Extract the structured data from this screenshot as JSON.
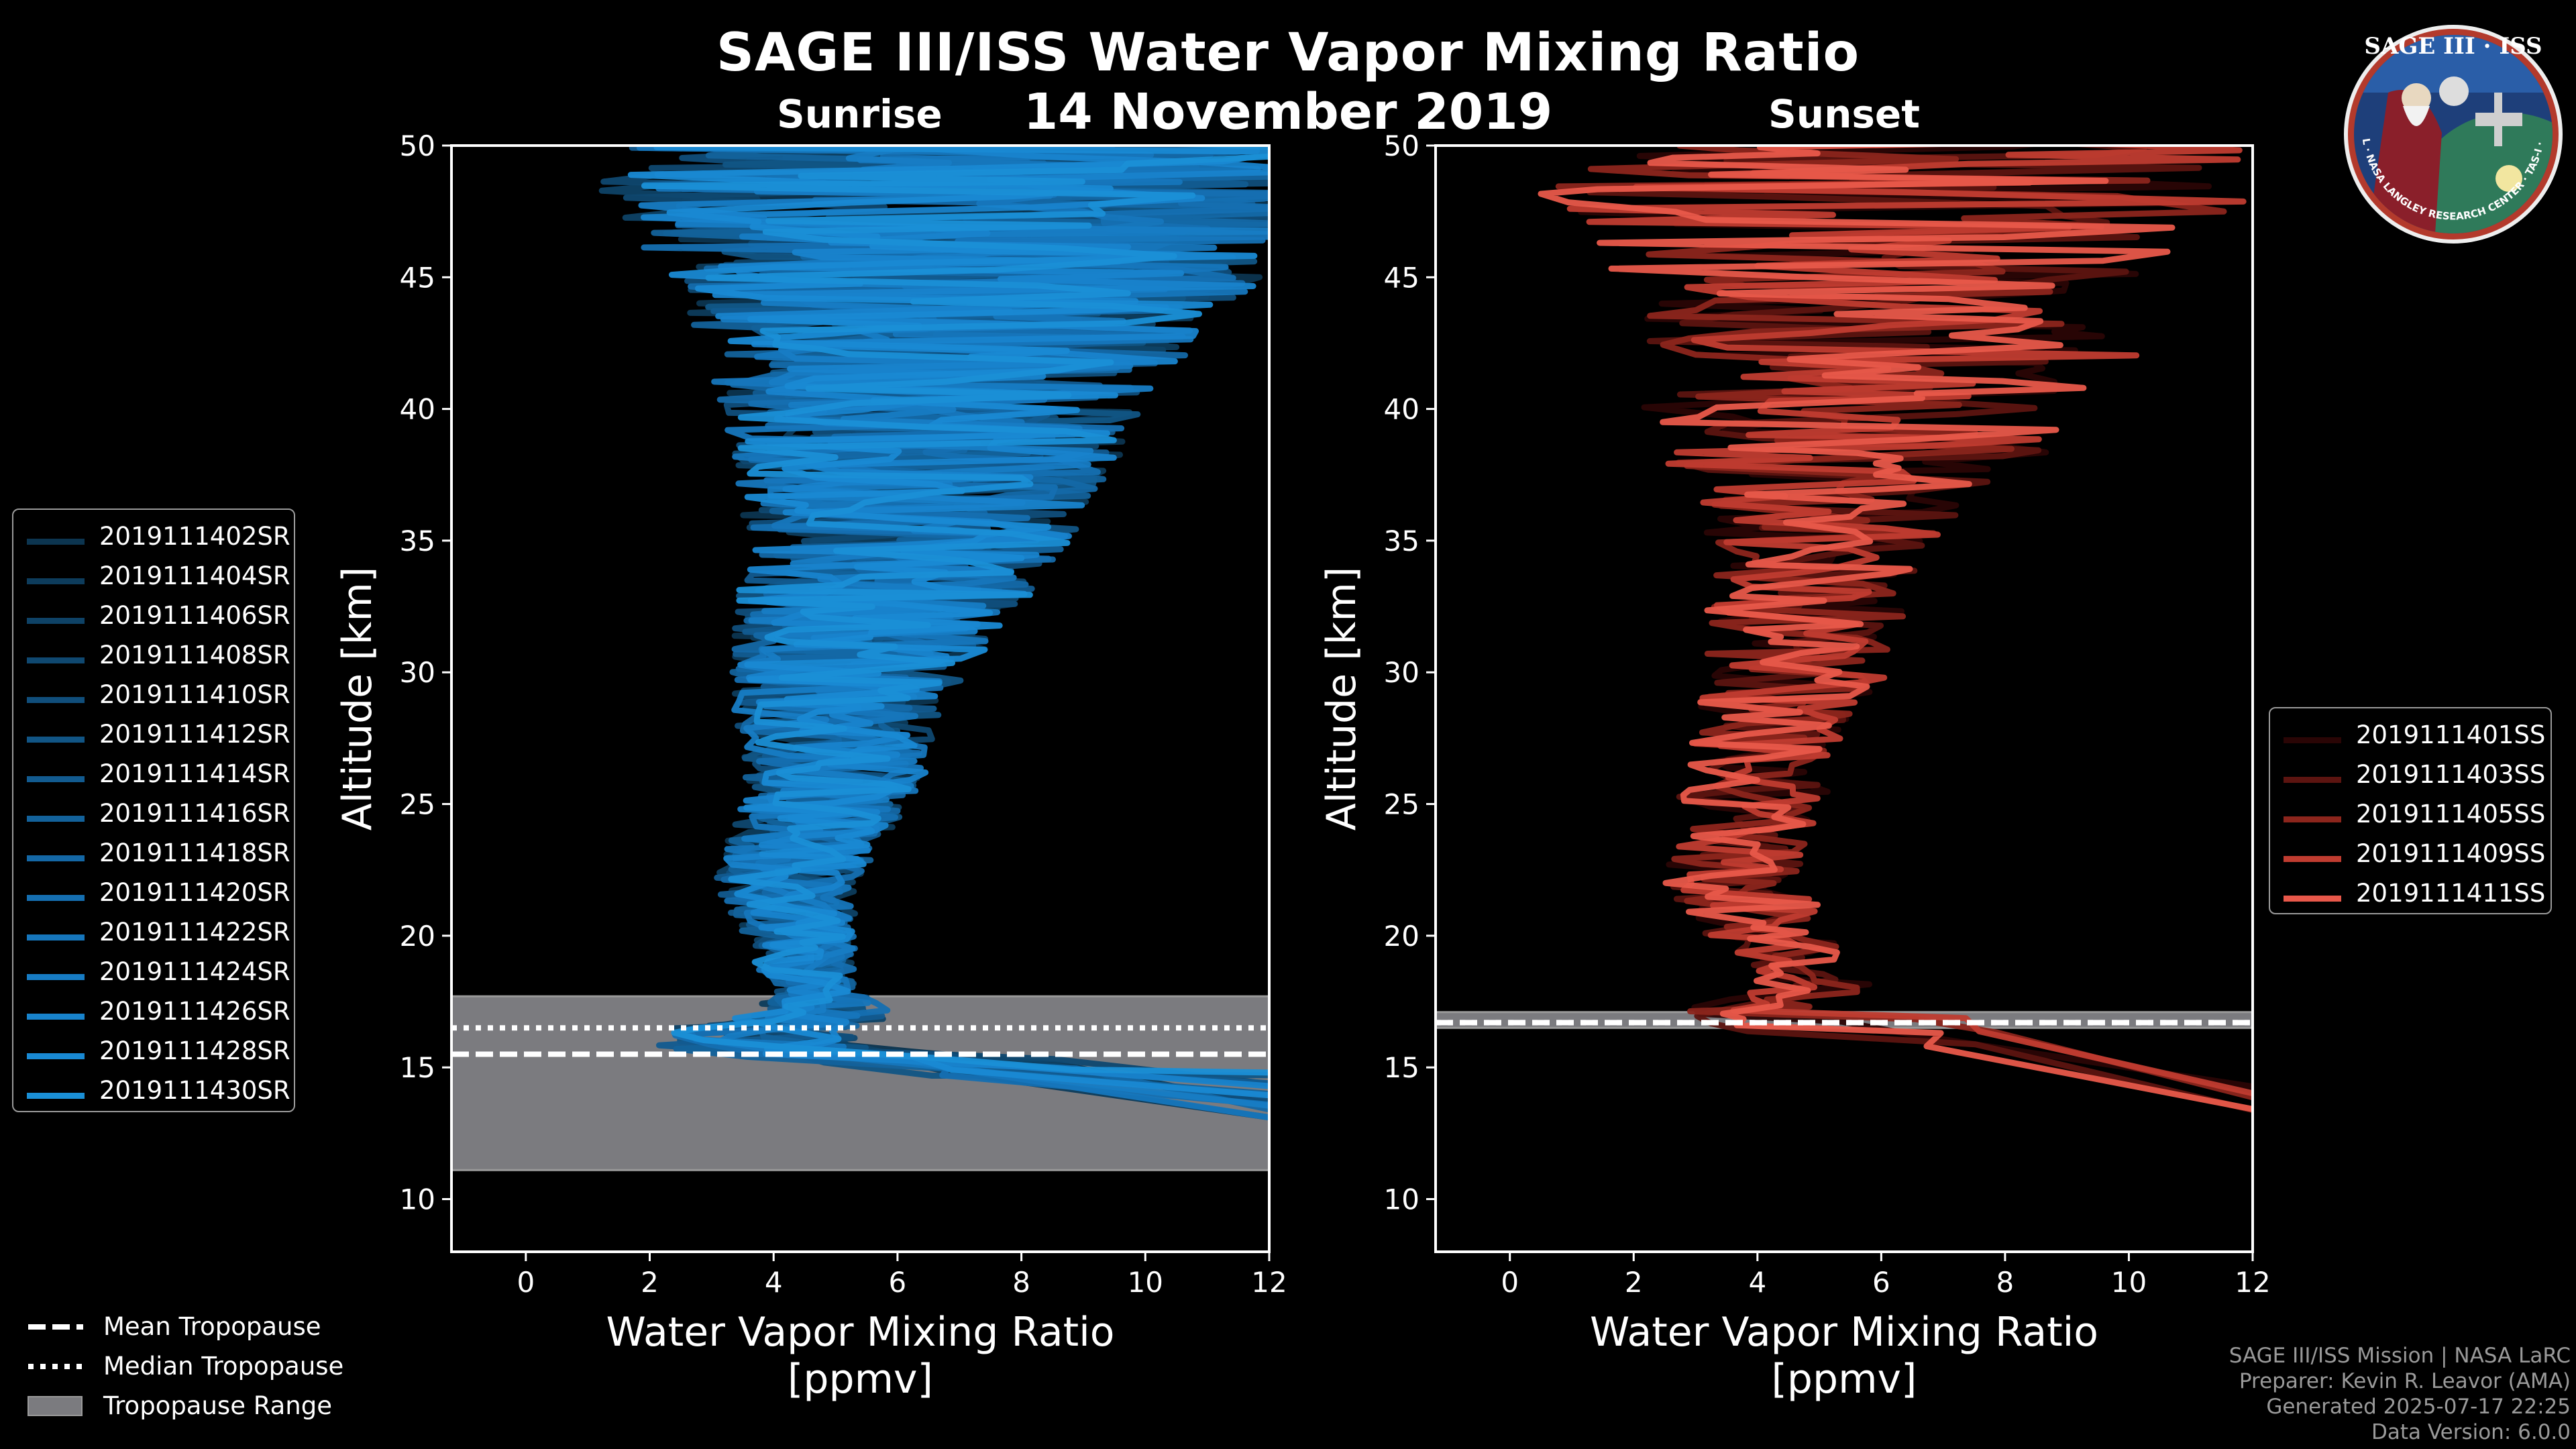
{
  "title": "SAGE III/ISS Water Vapor Mixing Ratio",
  "date": "14 November 2019",
  "colors": {
    "sunrise": "#1a8fd6",
    "sunset": "#e8584a",
    "tropopause_range": "#7b7b7f"
  },
  "logo": {
    "text": "SAGE III · ISS",
    "ring_text": "BALL · NASA LANGLEY RESEARCH CENTER · TAS-I · ESA"
  },
  "chart_data": [
    {
      "type": "line",
      "title": "Sunrise",
      "xlabel": "Water Vapor Mixing Ratio\n[ppmv]",
      "ylabel": "Altitude [km]",
      "xlim": [
        -1.2,
        12
      ],
      "ylim": [
        8,
        50
      ],
      "xticks": [
        0,
        2,
        4,
        6,
        8,
        10,
        12
      ],
      "yticks": [
        10,
        15,
        20,
        25,
        30,
        35,
        40,
        45,
        50
      ],
      "tropopause": {
        "mean": 15.5,
        "median": 16.5,
        "range": [
          11.1,
          17.7
        ]
      },
      "series": [
        "2019111402SR",
        "2019111404SR",
        "2019111406SR",
        "2019111408SR",
        "2019111410SR",
        "2019111412SR",
        "2019111414SR",
        "2019111416SR",
        "2019111418SR",
        "2019111420SR",
        "2019111422SR",
        "2019111424SR",
        "2019111426SR",
        "2019111428SR",
        "2019111430SR"
      ],
      "series_colors": [
        "#0c3550",
        "#0d3c5c",
        "#0e4266",
        "#0f4870",
        "#104e7b",
        "#115585",
        "#125b90",
        "#13629b",
        "#1468a6",
        "#156fb1",
        "#1676bc",
        "#177cc4",
        "#1883cc",
        "#1989d3",
        "#1a8fd6"
      ],
      "profile_mean": [
        [
          16.5,
          3.8
        ],
        [
          17,
          4.8
        ],
        [
          18,
          4.6
        ],
        [
          20,
          4.4
        ],
        [
          22,
          4.2
        ],
        [
          24,
          4.6
        ],
        [
          26,
          5.0
        ],
        [
          28,
          5.0
        ],
        [
          30,
          5.2
        ],
        [
          32,
          5.6
        ],
        [
          34,
          6.0
        ],
        [
          36,
          6.3
        ],
        [
          38,
          6.5
        ],
        [
          40,
          6.6
        ],
        [
          42,
          6.8
        ],
        [
          44,
          7.0
        ],
        [
          46,
          7.2
        ],
        [
          48,
          7.2
        ],
        [
          50,
          7.2
        ]
      ],
      "profile_spread": [
        [
          16,
          1.5
        ],
        [
          18,
          0.6
        ],
        [
          20,
          0.8
        ],
        [
          22,
          1.0
        ],
        [
          25,
          1.2
        ],
        [
          28,
          1.4
        ],
        [
          31,
          1.8
        ],
        [
          34,
          2.2
        ],
        [
          37,
          2.6
        ],
        [
          40,
          3.0
        ],
        [
          43,
          3.6
        ],
        [
          45,
          4.2
        ],
        [
          47,
          5.2
        ],
        [
          50,
          5.2
        ]
      ]
    },
    {
      "type": "line",
      "title": "Sunset",
      "xlabel": "Water Vapor Mixing Ratio\n[ppmv]",
      "ylabel": "Altitude [km]",
      "xlim": [
        -1.2,
        12
      ],
      "ylim": [
        8,
        50
      ],
      "xticks": [
        0,
        2,
        4,
        6,
        8,
        10,
        12
      ],
      "yticks": [
        10,
        15,
        20,
        25,
        30,
        35,
        40,
        45,
        50
      ],
      "tropopause": {
        "mean": 16.7,
        "median": 16.7,
        "range": [
          16.5,
          17.1
        ]
      },
      "series": [
        "2019111401SS",
        "2019111403SS",
        "2019111405SS",
        "2019111409SS",
        "2019111411SS"
      ],
      "series_colors": [
        "#2a0505",
        "#5c1410",
        "#8c251c",
        "#c03c30",
        "#e8584a"
      ],
      "profile_mean": [
        [
          16.8,
          3.2
        ],
        [
          17.5,
          4.2
        ],
        [
          18,
          5.0
        ],
        [
          19,
          4.6
        ],
        [
          20,
          4.2
        ],
        [
          22,
          3.6
        ],
        [
          24,
          3.8
        ],
        [
          26,
          4.0
        ],
        [
          28,
          4.3
        ],
        [
          30,
          4.6
        ],
        [
          32,
          4.8
        ],
        [
          34,
          5.0
        ],
        [
          36,
          5.2
        ],
        [
          38,
          5.5
        ],
        [
          40,
          5.8
        ],
        [
          42,
          6.0
        ],
        [
          44,
          6.0
        ],
        [
          46,
          6.0
        ],
        [
          48,
          6.2
        ],
        [
          50,
          6.2
        ]
      ],
      "profile_spread": [
        [
          17,
          0.8
        ],
        [
          19,
          0.8
        ],
        [
          21,
          1.0
        ],
        [
          24,
          1.0
        ],
        [
          27,
          1.1
        ],
        [
          30,
          1.3
        ],
        [
          33,
          1.5
        ],
        [
          36,
          1.8
        ],
        [
          38,
          2.6
        ],
        [
          40,
          3.2
        ],
        [
          42,
          3.6
        ],
        [
          44,
          3.2
        ],
        [
          46,
          4.2
        ],
        [
          48,
          5.0
        ],
        [
          50,
          5.0
        ]
      ]
    }
  ],
  "bottom_legend": {
    "mean": "Mean Tropopause",
    "median": "Median Tropopause",
    "range": "Tropopause Range"
  },
  "footer": [
    "SAGE III/ISS Mission | NASA LaRC",
    "Preparer: Kevin R. Leavor (AMA)",
    "Generated 2025-07-17 22:25",
    "Data Version: 6.0.0"
  ]
}
